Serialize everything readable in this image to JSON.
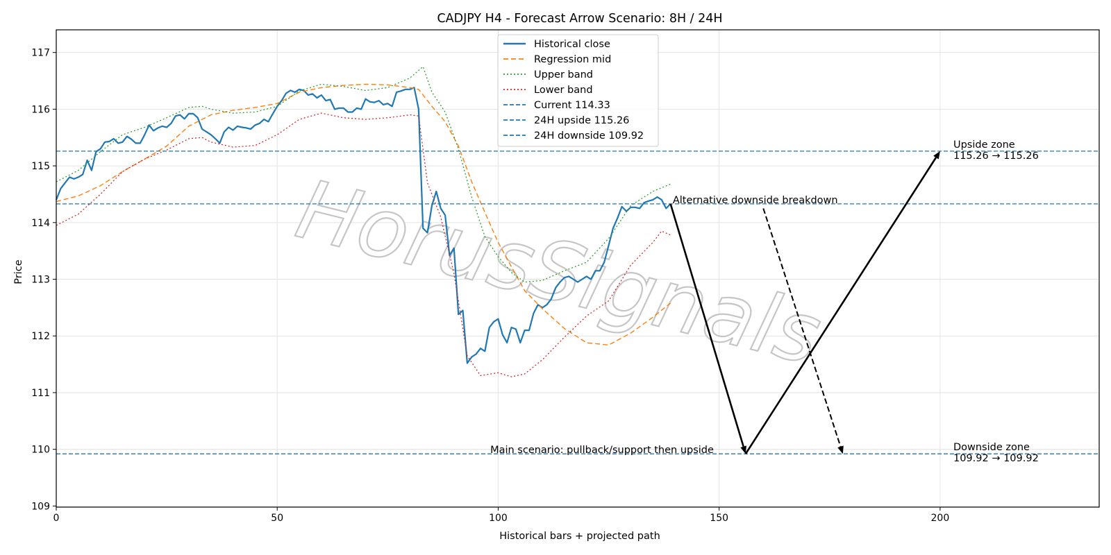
{
  "chart_data": {
    "type": "line",
    "title": "CADJPY H4 - Forecast Arrow Scenario: 8H / 24H",
    "xlabel": "Historical bars + projected path",
    "ylabel": "Price",
    "xlim": [
      0,
      236
    ],
    "ylim": [
      108.98,
      117.4
    ],
    "xticks": [
      0,
      50,
      100,
      150,
      200
    ],
    "yticks": [
      109,
      110,
      111,
      112,
      113,
      114,
      115,
      116,
      117
    ],
    "grid": true,
    "legend_position": "top-center",
    "watermark": "HorusSignals",
    "colors": {
      "close": "#1f77b4",
      "mid": "#ff7f0e",
      "upper": "#2ca02c",
      "lower": "#d62728",
      "hline": "#1f77b4",
      "arrow": "#000000"
    },
    "series": [
      {
        "name": "Historical close",
        "style": "solid",
        "points": [
          [
            0,
            114.4
          ],
          [
            1,
            114.6
          ],
          [
            2,
            114.7
          ],
          [
            3,
            114.8
          ],
          [
            4,
            114.77
          ],
          [
            5,
            114.8
          ],
          [
            6,
            114.85
          ],
          [
            7,
            115.1
          ],
          [
            8,
            114.92
          ],
          [
            9,
            115.25
          ],
          [
            10,
            115.3
          ],
          [
            11,
            115.42
          ],
          [
            12,
            115.43
          ],
          [
            13,
            115.48
          ],
          [
            14,
            115.4
          ],
          [
            15,
            115.42
          ],
          [
            16,
            115.52
          ],
          [
            17,
            115.47
          ],
          [
            18,
            115.4
          ],
          [
            19,
            115.4
          ],
          [
            20,
            115.55
          ],
          [
            21,
            115.72
          ],
          [
            22,
            115.62
          ],
          [
            23,
            115.67
          ],
          [
            24,
            115.7
          ],
          [
            25,
            115.68
          ],
          [
            26,
            115.75
          ],
          [
            27,
            115.88
          ],
          [
            28,
            115.9
          ],
          [
            29,
            115.83
          ],
          [
            30,
            115.92
          ],
          [
            31,
            115.92
          ],
          [
            32,
            115.85
          ],
          [
            33,
            115.65
          ],
          [
            34,
            115.6
          ],
          [
            35,
            115.55
          ],
          [
            36,
            115.48
          ],
          [
            37,
            115.4
          ],
          [
            38,
            115.6
          ],
          [
            39,
            115.68
          ],
          [
            40,
            115.63
          ],
          [
            41,
            115.7
          ],
          [
            42,
            115.68
          ],
          [
            43,
            115.67
          ],
          [
            44,
            115.65
          ],
          [
            45,
            115.72
          ],
          [
            46,
            115.75
          ],
          [
            47,
            115.82
          ],
          [
            48,
            115.78
          ],
          [
            49,
            115.92
          ],
          [
            50,
            116.05
          ],
          [
            51,
            116.15
          ],
          [
            52,
            116.28
          ],
          [
            53,
            116.33
          ],
          [
            54,
            116.3
          ],
          [
            55,
            116.35
          ],
          [
            56,
            116.33
          ],
          [
            57,
            116.25
          ],
          [
            58,
            116.27
          ],
          [
            59,
            116.2
          ],
          [
            60,
            116.25
          ],
          [
            61,
            116.15
          ],
          [
            62,
            116.17
          ],
          [
            63,
            116.0
          ],
          [
            64,
            116.02
          ],
          [
            65,
            116.02
          ],
          [
            66,
            115.95
          ],
          [
            67,
            115.95
          ],
          [
            68,
            116.02
          ],
          [
            69,
            116.0
          ],
          [
            70,
            116.18
          ],
          [
            71,
            116.13
          ],
          [
            72,
            116.12
          ],
          [
            73,
            116.15
          ],
          [
            74,
            116.08
          ],
          [
            75,
            116.1
          ],
          [
            76,
            116.05
          ],
          [
            77,
            116.3
          ],
          [
            78,
            116.32
          ],
          [
            79,
            116.35
          ],
          [
            80,
            116.35
          ],
          [
            81,
            116.38
          ],
          [
            82,
            116.0
          ],
          [
            83,
            113.9
          ],
          [
            84,
            113.82
          ],
          [
            85,
            114.3
          ],
          [
            86,
            114.55
          ],
          [
            87,
            114.25
          ],
          [
            88,
            114.13
          ],
          [
            89,
            113.42
          ],
          [
            90,
            113.55
          ],
          [
            91,
            112.38
          ],
          [
            92,
            112.45
          ],
          [
            93,
            111.52
          ],
          [
            94,
            111.63
          ],
          [
            95,
            111.68
          ],
          [
            96,
            111.78
          ],
          [
            97,
            111.73
          ],
          [
            98,
            112.15
          ],
          [
            99,
            112.25
          ],
          [
            100,
            112.3
          ],
          [
            101,
            112.02
          ],
          [
            102,
            111.88
          ],
          [
            103,
            112.15
          ],
          [
            104,
            112.12
          ],
          [
            105,
            111.88
          ],
          [
            106,
            112.1
          ],
          [
            107,
            112.1
          ],
          [
            108,
            112.4
          ],
          [
            109,
            112.55
          ],
          [
            110,
            112.5
          ],
          [
            111,
            112.55
          ],
          [
            112,
            112.65
          ],
          [
            113,
            112.85
          ],
          [
            114,
            112.95
          ],
          [
            115,
            113.03
          ],
          [
            116,
            113.05
          ],
          [
            117,
            113.0
          ],
          [
            118,
            112.95
          ],
          [
            119,
            113.0
          ],
          [
            120,
            113.05
          ],
          [
            121,
            113.0
          ],
          [
            122,
            113.15
          ],
          [
            123,
            113.15
          ],
          [
            124,
            113.3
          ],
          [
            125,
            113.6
          ],
          [
            126,
            113.9
          ],
          [
            127,
            114.08
          ],
          [
            128,
            114.28
          ],
          [
            129,
            114.2
          ],
          [
            130,
            114.27
          ],
          [
            131,
            114.27
          ],
          [
            132,
            114.25
          ],
          [
            133,
            114.35
          ],
          [
            134,
            114.38
          ],
          [
            135,
            114.4
          ],
          [
            136,
            114.45
          ],
          [
            137,
            114.4
          ],
          [
            138,
            114.25
          ],
          [
            139,
            114.33
          ]
        ]
      },
      {
        "name": "Regression mid",
        "style": "dashed",
        "points": [
          [
            0,
            114.37
          ],
          [
            5,
            114.47
          ],
          [
            10,
            114.65
          ],
          [
            15,
            114.9
          ],
          [
            20,
            115.12
          ],
          [
            25,
            115.35
          ],
          [
            30,
            115.7
          ],
          [
            35,
            115.9
          ],
          [
            40,
            115.98
          ],
          [
            45,
            116.03
          ],
          [
            50,
            116.1
          ],
          [
            55,
            116.3
          ],
          [
            60,
            116.38
          ],
          [
            65,
            116.42
          ],
          [
            70,
            116.44
          ],
          [
            75,
            116.43
          ],
          [
            80,
            116.38
          ],
          [
            82,
            116.35
          ],
          [
            85,
            116.05
          ],
          [
            88,
            115.78
          ],
          [
            91,
            115.35
          ],
          [
            94,
            114.72
          ],
          [
            97,
            114.18
          ],
          [
            100,
            113.65
          ],
          [
            103,
            113.22
          ],
          [
            106,
            112.8
          ],
          [
            110,
            112.48
          ],
          [
            115,
            112.13
          ],
          [
            120,
            111.88
          ],
          [
            125,
            111.84
          ],
          [
            130,
            112.05
          ],
          [
            135,
            112.33
          ],
          [
            139,
            112.58
          ]
        ]
      },
      {
        "name": "Upper band",
        "style": "dotted",
        "points": [
          [
            0,
            114.72
          ],
          [
            5,
            114.92
          ],
          [
            10,
            115.25
          ],
          [
            15,
            115.55
          ],
          [
            20,
            115.68
          ],
          [
            25,
            115.85
          ],
          [
            30,
            116.03
          ],
          [
            33,
            116.05
          ],
          [
            35,
            116.0
          ],
          [
            40,
            115.93
          ],
          [
            45,
            115.95
          ],
          [
            50,
            116.05
          ],
          [
            55,
            116.32
          ],
          [
            60,
            116.44
          ],
          [
            65,
            116.4
          ],
          [
            70,
            116.33
          ],
          [
            75,
            116.38
          ],
          [
            80,
            116.55
          ],
          [
            83,
            116.75
          ],
          [
            85,
            116.3
          ],
          [
            88,
            115.95
          ],
          [
            91,
            115.3
          ],
          [
            94,
            114.45
          ],
          [
            97,
            113.75
          ],
          [
            100,
            113.4
          ],
          [
            103,
            113.12
          ],
          [
            106,
            112.95
          ],
          [
            110,
            112.98
          ],
          [
            115,
            113.15
          ],
          [
            120,
            113.3
          ],
          [
            125,
            113.72
          ],
          [
            130,
            114.3
          ],
          [
            135,
            114.55
          ],
          [
            139,
            114.68
          ]
        ]
      },
      {
        "name": "Lower band",
        "style": "dotted",
        "points": [
          [
            0,
            113.95
          ],
          [
            5,
            114.15
          ],
          [
            10,
            114.5
          ],
          [
            15,
            114.9
          ],
          [
            20,
            115.12
          ],
          [
            25,
            115.28
          ],
          [
            30,
            115.48
          ],
          [
            33,
            115.5
          ],
          [
            35,
            115.42
          ],
          [
            40,
            115.33
          ],
          [
            45,
            115.36
          ],
          [
            50,
            115.55
          ],
          [
            55,
            115.82
          ],
          [
            60,
            115.93
          ],
          [
            65,
            115.85
          ],
          [
            70,
            115.82
          ],
          [
            75,
            115.85
          ],
          [
            80,
            115.9
          ],
          [
            82,
            115.88
          ],
          [
            84,
            114.7
          ],
          [
            87,
            114.1
          ],
          [
            90,
            113.1
          ],
          [
            93,
            111.65
          ],
          [
            96,
            111.3
          ],
          [
            100,
            111.35
          ],
          [
            103,
            111.28
          ],
          [
            106,
            111.33
          ],
          [
            110,
            111.58
          ],
          [
            115,
            111.98
          ],
          [
            120,
            112.35
          ],
          [
            125,
            112.62
          ],
          [
            130,
            113.25
          ],
          [
            135,
            113.65
          ],
          [
            137,
            113.85
          ],
          [
            139,
            113.78
          ]
        ]
      }
    ],
    "hlines": [
      {
        "name": "Current 114.33",
        "y": 114.33
      },
      {
        "name": "24H upside 115.26",
        "y": 115.26
      },
      {
        "name": "24H downside 109.92",
        "y": 109.92
      }
    ],
    "arrows": [
      {
        "name": "pullback",
        "from": [
          139,
          114.33
        ],
        "to": [
          156,
          109.92
        ],
        "style": "solid"
      },
      {
        "name": "upside",
        "from": [
          156,
          109.92
        ],
        "to": [
          200,
          115.26
        ],
        "style": "solid"
      },
      {
        "name": "alternative",
        "from": [
          160,
          114.25
        ],
        "to": [
          178,
          109.92
        ],
        "style": "dashed"
      }
    ],
    "annotations": [
      {
        "name": "main-scenario",
        "text": "Main scenario: pullback/support then upside",
        "x": 99,
        "y": 109.92
      },
      {
        "name": "alt-breakdown",
        "text": "Alternative downside breakdown",
        "x": 139.5,
        "y": 114.33
      },
      {
        "name": "upside-zone",
        "text": "Upside zone",
        "text2": "115.26 → 115.26",
        "x": 203,
        "y": 115.26
      },
      {
        "name": "downside-zone",
        "text": "Downside zone",
        "text2": "109.92 → 109.92",
        "x": 203,
        "y": 109.92
      }
    ]
  }
}
